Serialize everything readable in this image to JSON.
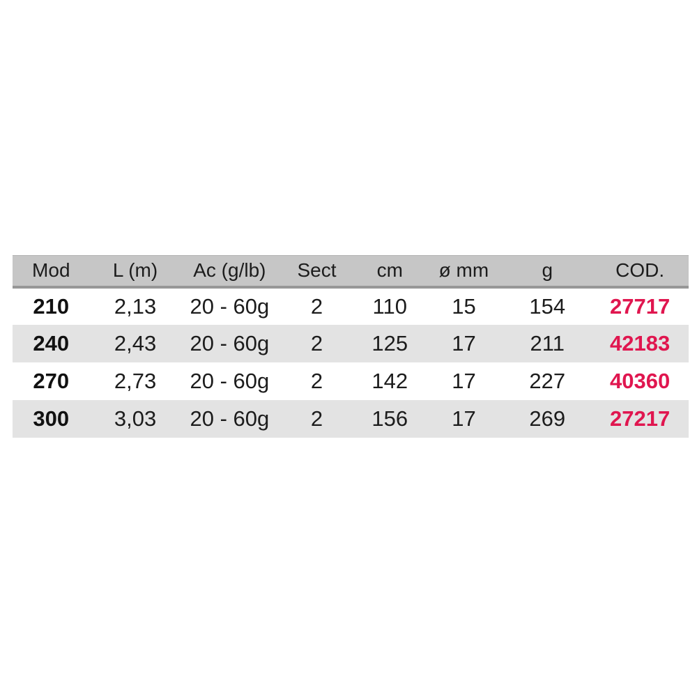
{
  "table": {
    "columns": [
      "Mod",
      "L (m)",
      "Ac (g/lb)",
      "Sect",
      "cm",
      "ø mm",
      "g",
      "COD."
    ],
    "rows": [
      [
        "210",
        "2,13",
        "20 - 60g",
        "2",
        "110",
        "15",
        "154",
        "27717"
      ],
      [
        "240",
        "2,43",
        "20 - 60g",
        "2",
        "125",
        "17",
        "211",
        "42183"
      ],
      [
        "270",
        "2,73",
        "20 - 60g",
        "2",
        "142",
        "17",
        "227",
        "40360"
      ],
      [
        "300",
        "3,03",
        "20 - 60g",
        "2",
        "156",
        "17",
        "269",
        "27217"
      ]
    ]
  },
  "colors": {
    "header_bg": "#c6c6c6",
    "header_separator": "#979797",
    "row_alt_bg": "#e3e3e3",
    "text": "#1c1c1c",
    "cod_accent": "#e0164f",
    "page_bg": "#ffffff"
  }
}
